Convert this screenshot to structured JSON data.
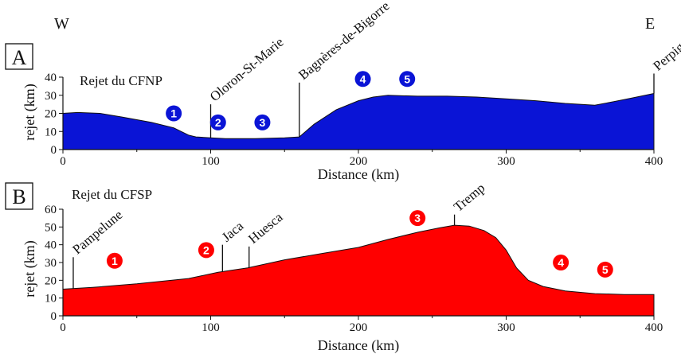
{
  "figure": {
    "west_label": "W",
    "east_label": "E"
  },
  "chart_data": [
    {
      "type": "area",
      "panel_label": "A",
      "title": "Rejet du CFNP",
      "xlabel": "Distance (km)",
      "ylabel": "rejet (km)",
      "xlim": [
        0,
        400
      ],
      "ylim": [
        0,
        40
      ],
      "x_ticks": [
        0,
        100,
        200,
        300,
        400
      ],
      "y_ticks": [
        0,
        10,
        20,
        30,
        40
      ],
      "color": "#0a14d6",
      "x": [
        0,
        10,
        25,
        40,
        60,
        75,
        85,
        90,
        100,
        110,
        130,
        150,
        160,
        170,
        185,
        200,
        210,
        220,
        240,
        260,
        280,
        300,
        320,
        340,
        360,
        370,
        385,
        400
      ],
      "y": [
        20,
        20.5,
        20,
        18,
        15,
        12,
        8,
        7,
        6.5,
        6,
        6,
        6.5,
        7,
        14,
        22,
        27,
        29,
        30,
        29.5,
        29.5,
        29,
        28,
        27,
        25.5,
        24.5,
        26,
        28.5,
        31
      ],
      "localities": [
        {
          "label": "Oloron-St-Marie",
          "x": 100,
          "top": 25
        },
        {
          "label": "Bagnères-de-Bigorre",
          "x": 160,
          "top": 37
        },
        {
          "label": "Perpignan",
          "x": 400,
          "top": 42
        }
      ],
      "markers": [
        {
          "label": "1",
          "x": 75,
          "y": 20
        },
        {
          "label": "2",
          "x": 105,
          "y": 15
        },
        {
          "label": "3",
          "x": 135,
          "y": 15
        },
        {
          "label": "4",
          "x": 203,
          "y": 39
        },
        {
          "label": "5",
          "x": 233,
          "y": 39
        }
      ]
    },
    {
      "type": "area",
      "panel_label": "B",
      "title": "Rejet du CFSP",
      "xlabel": "Distance (km)",
      "ylabel": "rejet (km)",
      "xlim": [
        0,
        400
      ],
      "ylim": [
        0,
        60
      ],
      "x_ticks": [
        0,
        100,
        200,
        300,
        400
      ],
      "y_ticks": [
        0,
        10,
        20,
        30,
        40,
        50,
        60
      ],
      "color": "#ff0000",
      "x": [
        0,
        20,
        50,
        85,
        105,
        125,
        150,
        175,
        200,
        220,
        240,
        255,
        265,
        275,
        285,
        293,
        300,
        307,
        315,
        325,
        340,
        360,
        380,
        400
      ],
      "y": [
        15,
        16,
        18,
        21,
        24.5,
        27,
        31.5,
        35,
        38.5,
        43,
        47,
        49.5,
        51,
        50.5,
        48,
        44,
        37,
        27,
        20,
        16.5,
        14,
        12.5,
        12,
        12
      ],
      "localities": [
        {
          "label": "Pampelune",
          "x": 7,
          "top": 33
        },
        {
          "label": "Jaca",
          "x": 108,
          "top": 40
        },
        {
          "label": "Huesca",
          "x": 126,
          "top": 39
        },
        {
          "label": "Tremp",
          "x": 265,
          "top": 57
        }
      ],
      "markers": [
        {
          "label": "1",
          "x": 35,
          "y": 31
        },
        {
          "label": "2",
          "x": 97,
          "y": 37
        },
        {
          "label": "3",
          "x": 240,
          "y": 55
        },
        {
          "label": "4",
          "x": 337,
          "y": 30
        },
        {
          "label": "5",
          "x": 367,
          "y": 26
        }
      ]
    }
  ]
}
